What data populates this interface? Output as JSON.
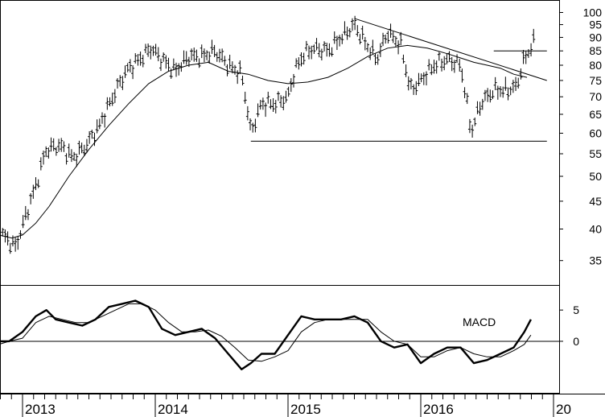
{
  "chart_data": [
    {
      "panel": "price",
      "type": "bar",
      "subtype": "ohlc-bars",
      "title": "",
      "xlabel": "",
      "ylabel": "",
      "y_scale": "log",
      "ylim": [
        32,
        104
      ],
      "y_ticks": [
        100,
        95,
        90,
        85,
        80,
        75,
        70,
        65,
        60,
        55,
        50,
        45,
        40,
        35
      ],
      "x_ticks": [
        "2013",
        "2014",
        "2015",
        "2016",
        "20"
      ],
      "grid": false,
      "price_path": [
        [
          2012.85,
          39
        ],
        [
          2012.95,
          37
        ],
        [
          2013.02,
          42
        ],
        [
          2013.1,
          48
        ],
        [
          2013.18,
          56
        ],
        [
          2013.28,
          57
        ],
        [
          2013.38,
          54
        ],
        [
          2013.48,
          57
        ],
        [
          2013.58,
          62
        ],
        [
          2013.68,
          70
        ],
        [
          2013.78,
          78
        ],
        [
          2013.88,
          82
        ],
        [
          2013.97,
          86
        ],
        [
          2014.05,
          82
        ],
        [
          2014.15,
          78
        ],
        [
          2014.25,
          83
        ],
        [
          2014.35,
          83
        ],
        [
          2014.45,
          85
        ],
        [
          2014.55,
          80
        ],
        [
          2014.65,
          77
        ],
        [
          2014.72,
          60
        ],
        [
          2014.8,
          68
        ],
        [
          2014.9,
          68
        ],
        [
          2015.0,
          70
        ],
        [
          2015.05,
          78
        ],
        [
          2015.12,
          84
        ],
        [
          2015.2,
          86
        ],
        [
          2015.3,
          85
        ],
        [
          2015.4,
          90
        ],
        [
          2015.5,
          95
        ],
        [
          2015.58,
          88
        ],
        [
          2015.67,
          82
        ],
        [
          2015.75,
          92
        ],
        [
          2015.85,
          87
        ],
        [
          2015.92,
          72
        ],
        [
          2016.0,
          75
        ],
        [
          2016.1,
          80
        ],
        [
          2016.2,
          82
        ],
        [
          2016.3,
          80
        ],
        [
          2016.38,
          60
        ],
        [
          2016.45,
          68
        ],
        [
          2016.55,
          72
        ],
        [
          2016.65,
          72
        ],
        [
          2016.72,
          73
        ],
        [
          2016.78,
          82
        ],
        [
          2016.85,
          88
        ]
      ],
      "series": [
        {
          "kind": "moving-average",
          "x": [
            2012.82,
            2012.92,
            2013.0,
            2013.1,
            2013.2,
            2013.35,
            2013.5,
            2013.65,
            2013.8,
            2013.95,
            2014.1,
            2014.25,
            2014.4,
            2014.55,
            2014.7,
            2014.85,
            2015.0,
            2015.15,
            2015.3,
            2015.45,
            2015.6,
            2015.75,
            2015.9,
            2016.05,
            2016.2,
            2016.3,
            2016.4,
            2016.5,
            2016.6,
            2016.7,
            2016.8
          ],
          "values": [
            39,
            38.5,
            39,
            41,
            44,
            50,
            56,
            62,
            68,
            74,
            78,
            80,
            81,
            78,
            77,
            75,
            74,
            74.5,
            76,
            79,
            83,
            86,
            87,
            86,
            84,
            82.5,
            81,
            80,
            79,
            77,
            76
          ]
        }
      ],
      "lines": [
        {
          "kind": "support",
          "x": [
            2014.72,
            2016.95
          ],
          "values": [
            58,
            58
          ]
        },
        {
          "kind": "resistance",
          "x": [
            2016.55,
            2016.95
          ],
          "values": [
            85,
            85
          ]
        },
        {
          "kind": "trendline",
          "x": [
            2015.5,
            2016.95
          ],
          "values": [
            97.5,
            75
          ]
        }
      ]
    },
    {
      "panel": "macd",
      "type": "line",
      "title": "",
      "annotation": "MACD",
      "ylim": [
        -8,
        8.5
      ],
      "y_ticks": [
        5,
        0
      ],
      "x_ticks": [
        "2013",
        "2014",
        "2015",
        "2016",
        "20"
      ],
      "series": [
        {
          "kind": "macd",
          "x": [
            2012.82,
            2012.9,
            2013.0,
            2013.1,
            2013.18,
            2013.25,
            2013.35,
            2013.45,
            2013.55,
            2013.65,
            2013.75,
            2013.85,
            2013.95,
            2014.05,
            2014.15,
            2014.25,
            2014.35,
            2014.45,
            2014.55,
            2014.65,
            2014.72,
            2014.8,
            2014.9,
            2015.0,
            2015.1,
            2015.2,
            2015.3,
            2015.4,
            2015.5,
            2015.6,
            2015.7,
            2015.8,
            2015.9,
            2016.0,
            2016.1,
            2016.2,
            2016.3,
            2016.4,
            2016.5,
            2016.6,
            2016.7,
            2016.78,
            2016.83
          ],
          "values": [
            0,
            0,
            1.5,
            4,
            5,
            3.5,
            3,
            2.5,
            3.5,
            5.5,
            6,
            6.5,
            5.5,
            2,
            1,
            1.5,
            2,
            0.5,
            -2,
            -4.5,
            -3.5,
            -2,
            -2,
            1,
            4,
            3.5,
            3.5,
            3.5,
            4,
            3,
            0,
            -1,
            -0.5,
            -3.5,
            -2,
            -1,
            -1,
            -3.5,
            -3,
            -2,
            -1,
            1.5,
            3.5
          ]
        },
        {
          "kind": "signal",
          "x": [
            2012.82,
            2012.9,
            2013.0,
            2013.1,
            2013.2,
            2013.3,
            2013.4,
            2013.5,
            2013.6,
            2013.7,
            2013.8,
            2013.9,
            2014.0,
            2014.1,
            2014.2,
            2014.3,
            2014.4,
            2014.5,
            2014.6,
            2014.7,
            2014.8,
            2014.9,
            2015.0,
            2015.1,
            2015.2,
            2015.3,
            2015.4,
            2015.5,
            2015.6,
            2015.7,
            2015.8,
            2015.9,
            2016.0,
            2016.1,
            2016.2,
            2016.3,
            2016.4,
            2016.5,
            2016.6,
            2016.7,
            2016.78,
            2016.83
          ],
          "values": [
            -0.5,
            0,
            0.5,
            3,
            4,
            3.5,
            3,
            3,
            4,
            5,
            6,
            6,
            5,
            3,
            1.5,
            1.5,
            1.8,
            0.8,
            -1,
            -3,
            -3.2,
            -2.5,
            -1.5,
            1.5,
            3,
            3.5,
            3.5,
            3.5,
            3.5,
            1.5,
            0,
            -0.5,
            -2.5,
            -2.5,
            -1.5,
            -1,
            -2,
            -2.5,
            -2.5,
            -1.5,
            -0.5,
            1
          ]
        }
      ],
      "lines": [
        {
          "kind": "zero-line",
          "values": [
            0,
            0
          ]
        }
      ]
    }
  ]
}
